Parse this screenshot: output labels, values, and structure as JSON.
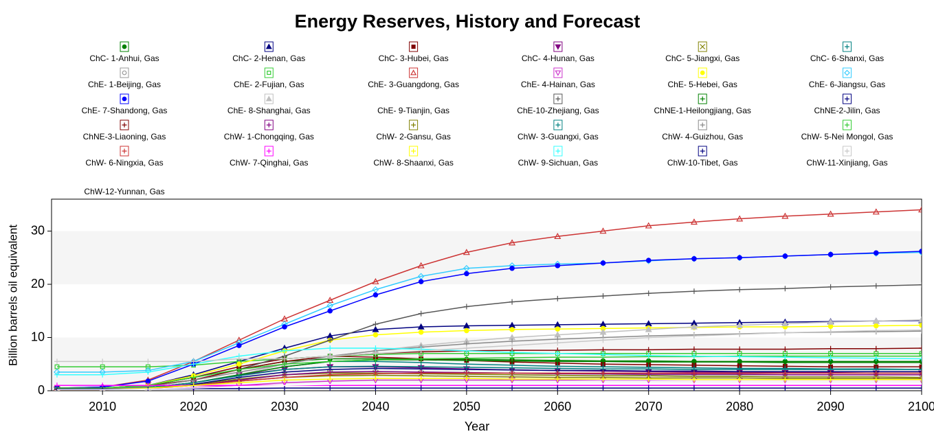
{
  "chart_data": {
    "type": "line",
    "title": "Energy Reserves, History and Forecast",
    "x_label": "Year",
    "y_label": "Billion barrels oil equivalent",
    "x": [
      2005,
      2010,
      2015,
      2020,
      2025,
      2030,
      2035,
      2040,
      2045,
      2050,
      2055,
      2060,
      2065,
      2070,
      2075,
      2080,
      2085,
      2090,
      2095,
      2100
    ],
    "xlim": [
      2004.4,
      2100
    ],
    "xticks": [
      2010,
      2020,
      2030,
      2040,
      2050,
      2060,
      2070,
      2080,
      2090,
      2100
    ],
    "ylim": [
      0,
      36
    ],
    "yticks": [
      0,
      10,
      20,
      30
    ],
    "grid": true,
    "series": [
      {
        "name": "ChC- 1-Anhui, Gas",
        "color": "#008000",
        "marker": "circle",
        "values": [
          0.5,
          0.5,
          1,
          2.5,
          4,
          5.5,
          6,
          6,
          6,
          5.9,
          5.8,
          5.7,
          5.6,
          5.6,
          5.5,
          5.5,
          5.5,
          5.5,
          5.5,
          5.5
        ]
      },
      {
        "name": "ChC- 2-Henan, Gas",
        "color": "#000080",
        "marker": "triangle",
        "values": [
          0.5,
          0.5,
          1,
          3,
          5.5,
          8,
          10.3,
          11.5,
          12,
          12.2,
          12.3,
          12.4,
          12.5,
          12.6,
          12.7,
          12.8,
          12.9,
          13,
          13.1,
          13.2
        ]
      },
      {
        "name": "ChC- 3-Hubei, Gas",
        "color": "#800000",
        "marker": "square",
        "values": [
          0.5,
          0.5,
          1,
          2.5,
          4.5,
          6,
          6.5,
          6.3,
          6,
          5.7,
          5.4,
          5.2,
          5,
          4.9,
          4.8,
          4.7,
          4.6,
          4.5,
          4.5,
          4.5
        ]
      },
      {
        "name": "ChC- 4-Hunan, Gas",
        "color": "#800080",
        "marker": "triangle-down",
        "values": [
          0.3,
          0.3,
          0.6,
          1.5,
          3,
          4,
          4.5,
          4.5,
          4.3,
          4.1,
          3.9,
          3.8,
          3.7,
          3.6,
          3.5,
          3.5,
          3.4,
          3.4,
          3.3,
          3.3
        ]
      },
      {
        "name": "ChC- 5-Jiangxi, Gas",
        "color": "#808000",
        "marker": "x",
        "values": [
          0.3,
          0.3,
          0.5,
          1.2,
          2.2,
          3,
          3.3,
          3.3,
          3.2,
          3.1,
          3,
          2.9,
          2.8,
          2.8,
          2.7,
          2.7,
          2.6,
          2.6,
          2.6,
          2.5
        ]
      },
      {
        "name": "ChC- 6-Shanxi, Gas",
        "color": "#008080",
        "marker": "plus",
        "values": [
          0.3,
          0.3,
          0.5,
          1.5,
          3,
          4.5,
          5.5,
          5.5,
          5.3,
          5,
          4.8,
          4.6,
          4.5,
          4.4,
          4.3,
          4.2,
          4.2,
          4.1,
          4.1,
          4
        ]
      },
      {
        "name": "ChE- 1-Beijing, Gas",
        "color": "#999999",
        "marker": "circle-open",
        "values": [
          0.2,
          0.2,
          0.4,
          1,
          2,
          3,
          3.5,
          3.6,
          3.5,
          3.4,
          3.3,
          3.2,
          3.1,
          3,
          3,
          3,
          3,
          3,
          3,
          3
        ]
      },
      {
        "name": "ChE- 2-Fujian, Gas",
        "color": "#33cc33",
        "marker": "square-open",
        "values": [
          4.5,
          4.5,
          4.5,
          4.8,
          5.5,
          6,
          6.5,
          6.8,
          7,
          7,
          7,
          7,
          7,
          7,
          7,
          7,
          7,
          7,
          7,
          7
        ]
      },
      {
        "name": "ChE- 3-Guangdong, Gas",
        "color": "#cc3333",
        "marker": "triangle-open",
        "values": [
          0.5,
          0.7,
          2,
          5.5,
          9.5,
          13.5,
          17,
          20.5,
          23.5,
          26,
          27.8,
          29,
          30,
          31,
          31.7,
          32.3,
          32.8,
          33.2,
          33.6,
          34
        ]
      },
      {
        "name": "ChE- 4-Hainan, Gas",
        "color": "#cc33cc",
        "marker": "triangle-down-open",
        "values": [
          0.2,
          0.2,
          0.3,
          0.6,
          1,
          1.5,
          1.8,
          2,
          2,
          2,
          2,
          2,
          2,
          2,
          2,
          2,
          2,
          2,
          2,
          2
        ]
      },
      {
        "name": "ChE- 5-Hebei, Gas",
        "color": "#ffff00",
        "marker": "circle",
        "values": [
          0.5,
          0.5,
          1,
          2.8,
          5,
          7.5,
          9.5,
          10.5,
          11,
          11.3,
          11.5,
          11.6,
          11.7,
          11.8,
          11.9,
          12,
          12,
          12.1,
          12.2,
          12.3
        ]
      },
      {
        "name": "ChE- 6-Jiangsu, Gas",
        "color": "#33ccff",
        "marker": "diamond-open",
        "values": [
          3.5,
          3.5,
          3.8,
          5.5,
          9,
          12.5,
          16,
          19,
          21.5,
          23,
          23.5,
          23.8,
          24,
          24.4,
          24.8,
          25,
          25.3,
          25.6,
          25.8,
          26
        ]
      },
      {
        "name": "ChE- 7-Shandong, Gas",
        "color": "#0000ff",
        "marker": "circle",
        "values": [
          0.5,
          0.7,
          1.8,
          5,
          8.5,
          12,
          15,
          18,
          20.5,
          22,
          23,
          23.5,
          24,
          24.5,
          24.8,
          25,
          25.3,
          25.6,
          25.9,
          26.2
        ]
      },
      {
        "name": "ChE- 8-Shanghai, Gas",
        "color": "#c0c0c0",
        "marker": "triangle",
        "values": [
          0.3,
          0.3,
          0.5,
          1.5,
          3,
          5,
          6.5,
          7.5,
          8.5,
          9.3,
          10,
          10.5,
          11,
          11.5,
          12,
          12.3,
          12.6,
          12.9,
          13.1,
          13.3
        ]
      },
      {
        "name": "ChE- 9-Tianjin, Gas",
        "color": "#ffffff",
        "marker": "none",
        "values": [
          0.2,
          0.2,
          0.3,
          0.8,
          1.5,
          2,
          2.3,
          2.4,
          2.4,
          2.3,
          2.2,
          2.2,
          2.1,
          2.1,
          2,
          2,
          2,
          2,
          2,
          2
        ]
      },
      {
        "name": "ChE-10-Zhejiang, Gas",
        "color": "#555555",
        "marker": "plus",
        "values": [
          0.3,
          0.4,
          0.8,
          2,
          4,
          6.5,
          9.5,
          12.5,
          14.5,
          15.8,
          16.7,
          17.3,
          17.8,
          18.3,
          18.7,
          19,
          19.2,
          19.5,
          19.7,
          19.9
        ]
      },
      {
        "name": "ChNE-1-Heilongjiang, Gas",
        "color": "#008000",
        "marker": "plus",
        "values": [
          0.3,
          0.3,
          0.6,
          1.5,
          3,
          4.5,
          5.5,
          5.8,
          5.8,
          5.7,
          5.6,
          5.5,
          5.5,
          5.4,
          5.4,
          5.4,
          5.3,
          5.3,
          5.3,
          5.3
        ]
      },
      {
        "name": "ChNE-2-Jilin, Gas",
        "color": "#000080",
        "marker": "plus",
        "values": [
          0.3,
          0.3,
          0.5,
          1.2,
          2.5,
          3.5,
          4,
          4.2,
          4.1,
          4,
          3.9,
          3.8,
          3.8,
          3.7,
          3.7,
          3.6,
          3.6,
          3.6,
          3.6,
          3.6
        ]
      },
      {
        "name": "ChNE-3-Liaoning, Gas",
        "color": "#800000",
        "marker": "plus",
        "values": [
          0.5,
          0.5,
          1,
          2,
          4,
          5.5,
          6.5,
          7,
          7.3,
          7.5,
          7.6,
          7.6,
          7.7,
          7.7,
          7.8,
          7.8,
          7.8,
          7.9,
          7.9,
          8
        ]
      },
      {
        "name": "ChW- 1-Chongqing, Gas",
        "color": "#800080",
        "marker": "plus",
        "values": [
          0.3,
          0.3,
          0.5,
          1,
          2,
          3,
          3.5,
          3.6,
          3.5,
          3.4,
          3.3,
          3.2,
          3.2,
          3.1,
          3.1,
          3.1,
          3,
          3,
          3,
          3
        ]
      },
      {
        "name": "ChW- 2-Gansu, Gas",
        "color": "#808000",
        "marker": "plus",
        "values": [
          0.2,
          0.2,
          0.4,
          1,
          1.8,
          2.5,
          2.8,
          2.9,
          2.8,
          2.7,
          2.6,
          2.5,
          2.5,
          2.4,
          2.4,
          2.4,
          2.3,
          2.3,
          2.3,
          2.3
        ]
      },
      {
        "name": "ChW- 3-Guangxi, Gas",
        "color": "#008080",
        "marker": "plus",
        "values": [
          0.3,
          0.3,
          0.6,
          1.5,
          2.8,
          4,
          4.5,
          4.6,
          4.5,
          4.4,
          4.3,
          4.2,
          4.1,
          4.1,
          4,
          4,
          4,
          4,
          4,
          4
        ]
      },
      {
        "name": "ChW- 4-Guizhou, Gas",
        "color": "#888888",
        "marker": "plus",
        "values": [
          0.5,
          0.5,
          0.8,
          2,
          3.5,
          5,
          6.5,
          7.5,
          8.2,
          8.8,
          9.3,
          9.7,
          10,
          10.3,
          10.5,
          10.7,
          10.9,
          11,
          11.1,
          11.2
        ]
      },
      {
        "name": "ChW- 5-Nei Mongol, Gas",
        "color": "#33cc33",
        "marker": "plus",
        "values": [
          0.5,
          0.5,
          1,
          2.5,
          4,
          5,
          5.5,
          5.8,
          6,
          6.1,
          6.2,
          6.3,
          6.3,
          6.4,
          6.4,
          6.5,
          6.5,
          6.5,
          6.5,
          6.5
        ]
      },
      {
        "name": "ChW- 6-Ningxia, Gas",
        "color": "#cc3333",
        "marker": "plus",
        "values": [
          0.2,
          0.2,
          0.4,
          1,
          1.8,
          2.5,
          3,
          3.2,
          3.3,
          3.3,
          3.3,
          3.3,
          3.3,
          3.3,
          3.3,
          3.3,
          3.3,
          3.3,
          3.3,
          3.3
        ]
      },
      {
        "name": "ChW- 7-Qinghai, Gas",
        "color": "#ff00ff",
        "marker": "plus",
        "values": [
          1,
          1,
          1,
          1,
          1,
          1,
          1,
          1,
          1,
          1,
          1,
          1,
          1,
          1,
          1,
          1,
          1,
          1,
          1,
          1
        ]
      },
      {
        "name": "ChW- 8-Shaanxi, Gas",
        "color": "#ffff00",
        "marker": "plus",
        "values": [
          0.3,
          0.3,
          0.5,
          1,
          1.5,
          2,
          2.2,
          2.3,
          2.3,
          2.3,
          2.2,
          2.2,
          2.2,
          2.2,
          2.1,
          2.1,
          2.1,
          2.1,
          2.1,
          2.1
        ]
      },
      {
        "name": "ChW- 9-Sichuan, Gas",
        "color": "#33ffff",
        "marker": "plus",
        "values": [
          3,
          3,
          3.5,
          5,
          6.5,
          7.5,
          8,
          8,
          7.8,
          7.5,
          7.2,
          7,
          6.8,
          6.6,
          6.5,
          6.4,
          6.3,
          6.2,
          6.1,
          6
        ]
      },
      {
        "name": "ChW-10-Tibet, Gas",
        "color": "#000080",
        "marker": "plus",
        "values": [
          0.3,
          0.3,
          0.3,
          0.4,
          0.4,
          0.5,
          0.5,
          0.5,
          0.5,
          0.5,
          0.5,
          0.5,
          0.5,
          0.5,
          0.5,
          0.5,
          0.5,
          0.5,
          0.5,
          0.5
        ]
      },
      {
        "name": "ChW-11-Xinjiang, Gas",
        "color": "#c8c8c8",
        "marker": "plus",
        "values": [
          5.5,
          5.5,
          5.5,
          5.5,
          6,
          6,
          6.5,
          7,
          7.5,
          8,
          8.5,
          9,
          9.5,
          10,
          10.3,
          10.6,
          10.9,
          11.1,
          11.3,
          11.4
        ]
      },
      {
        "name": "ChW-12-Yunnan, Gas",
        "color": "#ffffff",
        "marker": "none",
        "values": [
          0.2,
          0.2,
          0.3,
          0.5,
          0.8,
          1,
          1.2,
          1.3,
          1.3,
          1.3,
          1.3,
          1.3,
          1.3,
          1.3,
          1.3,
          1.3,
          1.3,
          1.3,
          1.3,
          1.3
        ]
      }
    ]
  }
}
